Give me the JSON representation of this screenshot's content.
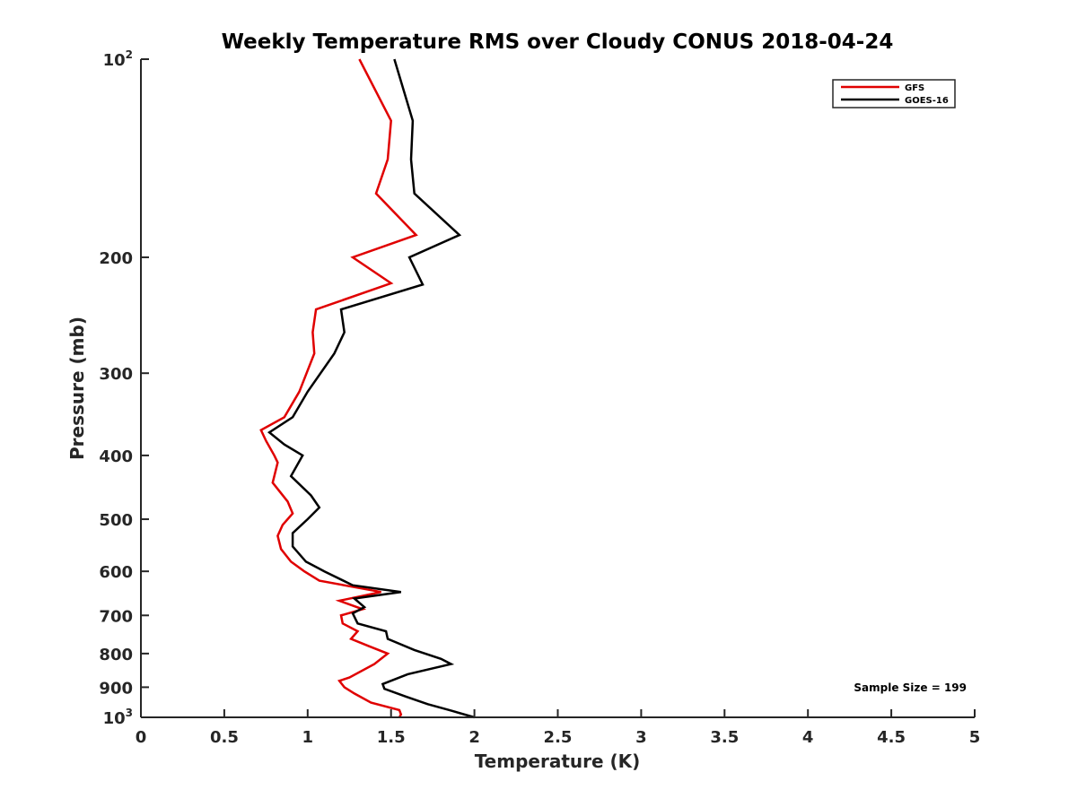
{
  "chart_data": {
    "type": "line",
    "title": "Weekly Temperature RMS over Cloudy CONUS 2018-04-24",
    "xlabel": "Temperature (K)",
    "ylabel": "Pressure (mb)",
    "xlim": [
      0,
      5
    ],
    "ylim": [
      100,
      1000
    ],
    "y_scale": "log",
    "y_reversed": true,
    "grid": false,
    "x_ticks": [
      {
        "value": 0,
        "label": "0"
      },
      {
        "value": 0.5,
        "label": "0.5"
      },
      {
        "value": 1,
        "label": "1"
      },
      {
        "value": 1.5,
        "label": "1.5"
      },
      {
        "value": 2,
        "label": "2"
      },
      {
        "value": 2.5,
        "label": "2.5"
      },
      {
        "value": 3,
        "label": "3"
      },
      {
        "value": 3.5,
        "label": "3.5"
      },
      {
        "value": 4,
        "label": "4"
      },
      {
        "value": 4.5,
        "label": "4.5"
      },
      {
        "value": 5,
        "label": "5"
      }
    ],
    "y_ticks": [
      {
        "value": 100,
        "label": "10",
        "exponent": "2"
      },
      {
        "value": 200,
        "label": "200"
      },
      {
        "value": 300,
        "label": "300"
      },
      {
        "value": 400,
        "label": "400"
      },
      {
        "value": 500,
        "label": "500"
      },
      {
        "value": 600,
        "label": "600"
      },
      {
        "value": 700,
        "label": "700"
      },
      {
        "value": 800,
        "label": "800"
      },
      {
        "value": 900,
        "label": "900"
      },
      {
        "value": 1000,
        "label": "10",
        "exponent": "3"
      }
    ],
    "legend_position": "top-right",
    "annotation": "Sample Size = 199",
    "series": [
      {
        "name": "GFS",
        "color": "#e00000",
        "points": [
          [
            1.31,
            100
          ],
          [
            1.5,
            124
          ],
          [
            1.48,
            142
          ],
          [
            1.41,
            160
          ],
          [
            1.65,
            185
          ],
          [
            1.27,
            200
          ],
          [
            1.5,
            219
          ],
          [
            1.05,
            240
          ],
          [
            1.03,
            260
          ],
          [
            1.04,
            280
          ],
          [
            0.95,
            320
          ],
          [
            0.86,
            350
          ],
          [
            0.72,
            366
          ],
          [
            0.75,
            380
          ],
          [
            0.8,
            400
          ],
          [
            0.82,
            410
          ],
          [
            0.79,
            440
          ],
          [
            0.88,
            470
          ],
          [
            0.91,
            490
          ],
          [
            0.85,
            510
          ],
          [
            0.82,
            530
          ],
          [
            0.84,
            555
          ],
          [
            0.9,
            580
          ],
          [
            0.98,
            600
          ],
          [
            1.07,
            620
          ],
          [
            1.44,
            645
          ],
          [
            1.19,
            665
          ],
          [
            1.33,
            685
          ],
          [
            1.2,
            700
          ],
          [
            1.21,
            720
          ],
          [
            1.3,
            740
          ],
          [
            1.26,
            760
          ],
          [
            1.37,
            780
          ],
          [
            1.48,
            800
          ],
          [
            1.4,
            830
          ],
          [
            1.25,
            870
          ],
          [
            1.19,
            880
          ],
          [
            1.22,
            900
          ],
          [
            1.28,
            920
          ],
          [
            1.38,
            950
          ],
          [
            1.55,
            975
          ],
          [
            1.56,
            990
          ],
          [
            1.55,
            1000
          ]
        ]
      },
      {
        "name": "GOES-16",
        "color": "#000000",
        "points": [
          [
            1.52,
            100
          ],
          [
            1.63,
            124
          ],
          [
            1.62,
            142
          ],
          [
            1.64,
            160
          ],
          [
            1.91,
            185
          ],
          [
            1.61,
            200
          ],
          [
            1.69,
            220
          ],
          [
            1.2,
            240
          ],
          [
            1.22,
            260
          ],
          [
            1.16,
            280
          ],
          [
            1.0,
            320
          ],
          [
            0.91,
            350
          ],
          [
            0.77,
            369
          ],
          [
            0.86,
            385
          ],
          [
            0.97,
            400
          ],
          [
            0.9,
            430
          ],
          [
            1.02,
            460
          ],
          [
            1.07,
            480
          ],
          [
            1.0,
            500
          ],
          [
            0.91,
            525
          ],
          [
            0.91,
            550
          ],
          [
            0.99,
            580
          ],
          [
            1.1,
            600
          ],
          [
            1.27,
            630
          ],
          [
            1.56,
            645
          ],
          [
            1.28,
            660
          ],
          [
            1.34,
            680
          ],
          [
            1.27,
            695
          ],
          [
            1.3,
            720
          ],
          [
            1.47,
            740
          ],
          [
            1.48,
            760
          ],
          [
            1.64,
            790
          ],
          [
            1.8,
            815
          ],
          [
            1.86,
            830
          ],
          [
            1.6,
            860
          ],
          [
            1.45,
            890
          ],
          [
            1.46,
            905
          ],
          [
            1.59,
            930
          ],
          [
            1.72,
            955
          ],
          [
            1.85,
            975
          ],
          [
            2.0,
            1000
          ]
        ]
      }
    ]
  }
}
